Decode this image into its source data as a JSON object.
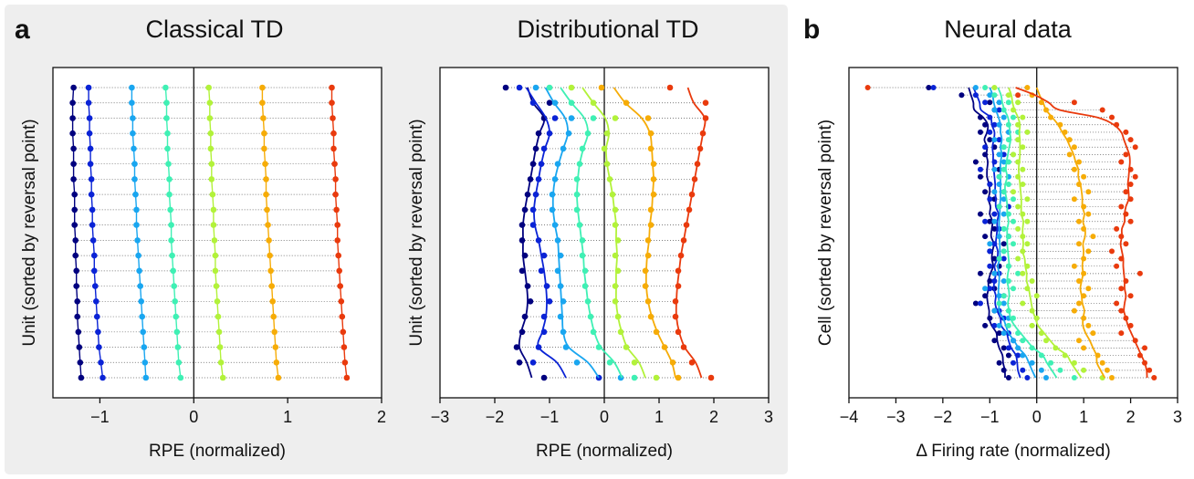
{
  "panels": {
    "a": {
      "letter": "a"
    },
    "b": {
      "letter": "b"
    }
  },
  "series_colors": [
    "#00007f",
    "#0a23d6",
    "#19a6f0",
    "#3ff0b4",
    "#b2f23a",
    "#f6ac07",
    "#e93a0d"
  ],
  "chart_data": [
    {
      "type": "scatter",
      "title": "Classical TD",
      "xlabel": "RPE (normalized)",
      "ylabel": "Unit (sorted by reversal point)",
      "xlim": [
        -1.5,
        2
      ],
      "xticks": [
        -1,
        0,
        1,
        2
      ],
      "xtick_labels": [
        "−1",
        "0",
        "1",
        "2"
      ],
      "vline_at": 0,
      "grid": "dotted horizontal row lines",
      "rows": 20,
      "series": [
        {
          "values": [
            -1.28,
            -1.29,
            -1.29,
            -1.29,
            -1.28,
            -1.28,
            -1.28,
            -1.27,
            -1.27,
            -1.27,
            -1.26,
            -1.26,
            -1.25,
            -1.25,
            -1.24,
            -1.24,
            -1.23,
            -1.22,
            -1.21,
            -1.2
          ]
        },
        {
          "values": [
            -1.12,
            -1.12,
            -1.11,
            -1.11,
            -1.1,
            -1.1,
            -1.09,
            -1.09,
            -1.08,
            -1.08,
            -1.07,
            -1.06,
            -1.06,
            -1.05,
            -1.04,
            -1.03,
            -1.02,
            -1.01,
            -0.99,
            -0.97
          ]
        },
        {
          "values": [
            -0.66,
            -0.66,
            -0.65,
            -0.65,
            -0.64,
            -0.63,
            -0.63,
            -0.62,
            -0.61,
            -0.61,
            -0.6,
            -0.59,
            -0.58,
            -0.57,
            -0.56,
            -0.55,
            -0.54,
            -0.53,
            -0.52,
            -0.51
          ]
        },
        {
          "values": [
            -0.3,
            -0.29,
            -0.29,
            -0.28,
            -0.28,
            -0.27,
            -0.26,
            -0.26,
            -0.25,
            -0.24,
            -0.24,
            -0.23,
            -0.22,
            -0.21,
            -0.2,
            -0.19,
            -0.18,
            -0.17,
            -0.16,
            -0.14
          ]
        },
        {
          "values": [
            0.16,
            0.17,
            0.17,
            0.18,
            0.18,
            0.19,
            0.19,
            0.2,
            0.21,
            0.21,
            0.22,
            0.23,
            0.23,
            0.24,
            0.25,
            0.26,
            0.27,
            0.28,
            0.29,
            0.31
          ]
        },
        {
          "values": [
            0.73,
            0.73,
            0.74,
            0.75,
            0.75,
            0.76,
            0.77,
            0.77,
            0.78,
            0.79,
            0.8,
            0.81,
            0.82,
            0.83,
            0.84,
            0.85,
            0.86,
            0.87,
            0.88,
            0.9
          ]
        },
        {
          "values": [
            1.47,
            1.47,
            1.48,
            1.49,
            1.49,
            1.5,
            1.51,
            1.51,
            1.52,
            1.53,
            1.53,
            1.54,
            1.55,
            1.56,
            1.57,
            1.58,
            1.59,
            1.6,
            1.61,
            1.63
          ]
        }
      ]
    },
    {
      "type": "scatter",
      "title": "Distributional TD",
      "xlabel": "RPE (normalized)",
      "ylabel": "Unit (sorted by reversal point)",
      "xlim": [
        -3,
        3
      ],
      "xticks": [
        -3,
        -2,
        -1,
        0,
        1,
        2,
        3
      ],
      "xtick_labels": [
        "−3",
        "−2",
        "−1",
        "0",
        "1",
        "2",
        "3"
      ],
      "vline_at": 0,
      "grid": "dotted horizontal row lines",
      "rows": 20,
      "series": [
        {
          "values": [
            -1.8,
            -1.0,
            -1.1,
            -1.2,
            -1.25,
            -1.3,
            -1.35,
            -1.4,
            -1.45,
            -1.5,
            -1.5,
            -1.45,
            -1.5,
            -1.4,
            -1.35,
            -1.45,
            -1.5,
            -1.6,
            -1.55,
            -1.1
          ]
        },
        {
          "values": [
            -1.55,
            -1.3,
            -0.9,
            -1.0,
            -1.1,
            -1.15,
            -1.2,
            -1.25,
            -1.3,
            -1.3,
            -1.2,
            -1.1,
            -1.15,
            -1.05,
            -1.0,
            -1.1,
            -1.1,
            -1.2,
            -1.3,
            -0.1
          ]
        },
        {
          "values": [
            -1.25,
            -0.9,
            -0.6,
            -0.65,
            -0.75,
            -0.85,
            -0.9,
            -0.95,
            -0.95,
            -0.9,
            -0.85,
            -0.8,
            -0.85,
            -0.8,
            -0.75,
            -0.8,
            -0.75,
            -0.7,
            -0.5,
            0.3
          ]
        },
        {
          "values": [
            -1.0,
            -0.6,
            -0.2,
            -0.3,
            -0.4,
            -0.45,
            -0.5,
            -0.5,
            -0.5,
            -0.45,
            -0.4,
            -0.4,
            -0.35,
            -0.35,
            -0.3,
            -0.25,
            -0.2,
            -0.1,
            0.1,
            0.55
          ]
        },
        {
          "values": [
            -0.6,
            -0.2,
            0.2,
            0.05,
            0.0,
            0.05,
            0.1,
            0.15,
            0.2,
            0.2,
            0.25,
            0.2,
            0.25,
            0.2,
            0.2,
            0.25,
            0.3,
            0.4,
            0.55,
            0.95
          ]
        },
        {
          "values": [
            -0.05,
            0.4,
            0.8,
            0.85,
            0.85,
            0.9,
            0.9,
            0.9,
            0.85,
            0.85,
            0.8,
            0.8,
            0.75,
            0.75,
            0.8,
            0.85,
            0.95,
            1.1,
            1.25,
            1.35
          ]
        },
        {
          "values": [
            1.2,
            1.85,
            1.85,
            1.8,
            1.75,
            1.7,
            1.65,
            1.6,
            1.55,
            1.5,
            1.45,
            1.4,
            1.35,
            1.35,
            1.3,
            1.3,
            1.35,
            1.45,
            1.6,
            1.95
          ]
        }
      ]
    },
    {
      "type": "scatter",
      "title": "Neural data",
      "xlabel": "Δ Firing rate (normalized)",
      "ylabel": "Cell (sorted by reversal point)",
      "xlim": [
        -4,
        3
      ],
      "xticks": [
        -4,
        -3,
        -2,
        -1,
        0,
        1,
        2,
        3
      ],
      "xtick_labels": [
        "−4",
        "−3",
        "−2",
        "−1",
        "0",
        "1",
        "2",
        "3"
      ],
      "vline_at": 0,
      "grid": "dotted horizontal row lines",
      "rows": 40,
      "series": [
        {
          "values": [
            -2.3,
            -1.6,
            -1.0,
            -0.9,
            -1.2,
            -1.1,
            -1.2,
            -1.0,
            -0.9,
            -1.1,
            -1.3,
            -0.8,
            -1.2,
            -1.0,
            -1.1,
            -0.9,
            -0.8,
            -1.2,
            -1.0,
            -0.9,
            -1.1,
            -0.7,
            -1.0,
            -0.9,
            -0.8,
            -1.2,
            -1.0,
            -0.9,
            -1.1,
            -1.3,
            -0.9,
            -1.0,
            -1.1,
            -0.8,
            -0.9,
            -0.7,
            -0.6,
            -0.8,
            -0.7,
            -0.6
          ]
        },
        {
          "values": [
            -2.2,
            -1.3,
            -1.1,
            -0.8,
            -1.0,
            -0.9,
            -1.0,
            -0.8,
            -1.1,
            -0.7,
            -0.9,
            -1.2,
            -0.8,
            -1.0,
            -0.7,
            -1.0,
            -0.6,
            -0.9,
            -1.1,
            -0.8,
            -0.6,
            -0.9,
            -1.0,
            -0.7,
            -1.0,
            -0.8,
            -0.9,
            -1.0,
            -0.7,
            -1.2,
            -0.8,
            -0.7,
            -0.9,
            -0.6,
            -0.5,
            -0.6,
            -0.4,
            -0.5,
            -0.3,
            -0.2
          ]
        },
        {
          "values": [
            -1.3,
            -1.0,
            -0.8,
            -0.9,
            -0.7,
            -0.8,
            -0.6,
            -0.9,
            -0.7,
            -0.8,
            -0.7,
            -0.9,
            -0.6,
            -0.8,
            -0.9,
            -0.7,
            -0.8,
            -0.7,
            -0.9,
            -0.7,
            -0.8,
            -1.0,
            -0.7,
            -0.8,
            -0.6,
            -0.9,
            -0.7,
            -1.1,
            -0.8,
            -0.7,
            -0.9,
            -0.6,
            -0.8,
            -0.7,
            -0.5,
            -0.4,
            -0.3,
            -0.1,
            0.1,
            0.2
          ]
        },
        {
          "values": [
            -1.1,
            -0.9,
            -0.6,
            -0.7,
            -0.5,
            -0.6,
            -0.4,
            -0.6,
            -0.7,
            -0.5,
            -0.6,
            -0.7,
            -0.8,
            -0.6,
            -0.7,
            -0.5,
            -0.8,
            -0.6,
            -0.5,
            -0.7,
            -0.6,
            -0.5,
            -0.7,
            -0.8,
            -0.6,
            -0.4,
            -0.6,
            -0.5,
            -0.7,
            -0.8,
            -0.6,
            -0.5,
            -0.6,
            -0.4,
            -0.3,
            -0.1,
            0.1,
            0.3,
            0.5,
            0.8
          ]
        },
        {
          "values": [
            -0.9,
            -0.6,
            -0.4,
            -0.5,
            -0.3,
            -0.4,
            -0.2,
            -0.4,
            -0.3,
            -0.5,
            -0.4,
            -0.3,
            -0.4,
            -0.3,
            -0.5,
            -0.2,
            -0.4,
            -0.3,
            -0.2,
            -0.4,
            -0.3,
            -0.2,
            -0.3,
            -0.4,
            -0.2,
            -0.3,
            -0.1,
            -0.2,
            0.0,
            -0.3,
            -0.1,
            0.0,
            -0.1,
            0.1,
            0.2,
            0.4,
            0.6,
            0.8,
            1.0,
            1.4
          ]
        },
        {
          "values": [
            -0.2,
            -0.1,
            0.1,
            0.2,
            0.3,
            0.5,
            0.6,
            0.7,
            0.8,
            0.7,
            0.9,
            0.8,
            1.0,
            0.9,
            1.1,
            0.8,
            1.0,
            1.1,
            0.9,
            1.0,
            1.2,
            0.9,
            1.1,
            1.0,
            0.8,
            1.0,
            0.9,
            1.1,
            1.0,
            0.9,
            0.8,
            1.0,
            1.1,
            1.2,
            0.9,
            1.0,
            1.3,
            1.4,
            1.5,
            1.6
          ]
        },
        {
          "values": [
            -3.6,
            -0.4,
            0.8,
            1.4,
            1.6,
            1.7,
            1.9,
            2.0,
            2.1,
            1.9,
            1.8,
            2.0,
            2.1,
            2.0,
            1.9,
            2.0,
            1.8,
            1.9,
            2.0,
            1.7,
            1.8,
            1.9,
            1.6,
            1.8,
            1.7,
            2.2,
            1.9,
            1.8,
            2.0,
            1.7,
            1.8,
            1.9,
            2.0,
            1.8,
            2.1,
            2.3,
            2.2,
            2.3,
            2.4,
            2.5
          ]
        }
      ]
    }
  ]
}
